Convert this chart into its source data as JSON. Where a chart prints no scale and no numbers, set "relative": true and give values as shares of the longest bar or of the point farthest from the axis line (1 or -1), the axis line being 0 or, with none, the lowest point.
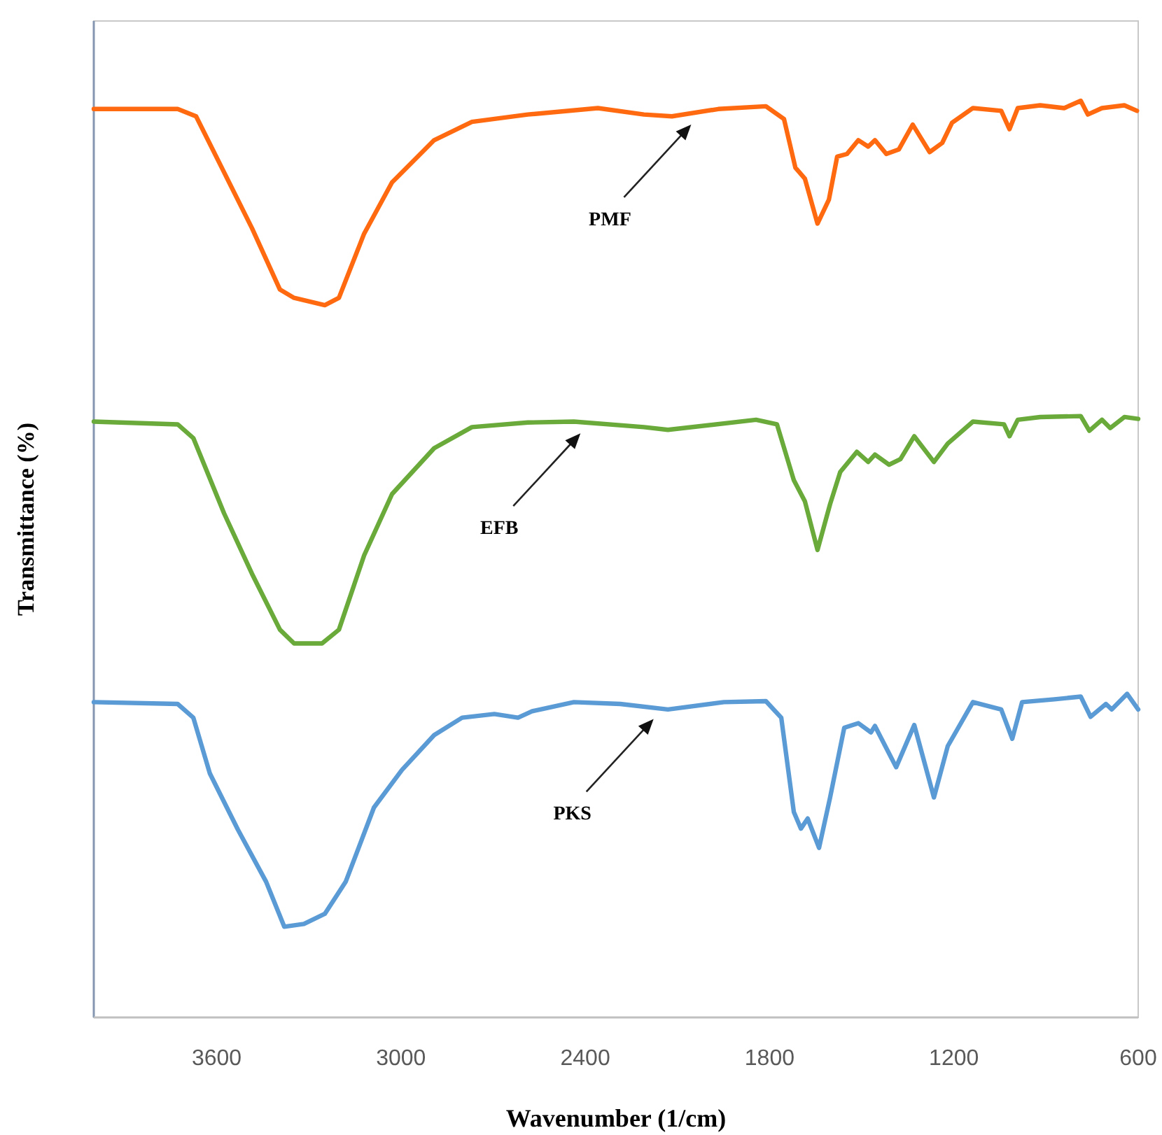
{
  "chart_data": {
    "type": "line",
    "relative": true,
    "xlabel": "Wavenumber (1/cm)",
    "ylabel": "Transmittance (%)",
    "xlim": [
      4000,
      600
    ],
    "xticks": [
      3600,
      3000,
      2400,
      1800,
      1200,
      600
    ],
    "tick_labels": "x",
    "grid": false,
    "marker": "none",
    "line_style": "solid",
    "series": [
      {
        "color": "#ff6a10",
        "x": [
          4000,
          3727,
          3667,
          3576,
          3485,
          3394,
          3348,
          3248,
          3202,
          3120,
          3029,
          2892,
          2769,
          2587,
          2359,
          2209,
          2118,
          1967,
          1812,
          1753,
          1716,
          1685,
          1644,
          1607,
          1580,
          1548,
          1511,
          1479,
          1457,
          1420,
          1379,
          1334,
          1279,
          1238,
          1206,
          1138,
          1046,
          1019,
          992,
          919,
          841,
          787,
          764,
          718,
          645,
          604
        ],
        "values": [
          0.991,
          0.991,
          0.983,
          0.922,
          0.861,
          0.794,
          0.785,
          0.777,
          0.785,
          0.855,
          0.911,
          0.957,
          0.977,
          0.985,
          0.992,
          0.985,
          0.983,
          0.991,
          0.994,
          0.98,
          0.927,
          0.915,
          0.866,
          0.892,
          0.939,
          0.942,
          0.957,
          0.95,
          0.957,
          0.942,
          0.947,
          0.974,
          0.944,
          0.954,
          0.976,
          0.992,
          0.989,
          0.969,
          0.992,
          0.995,
          0.992,
          1,
          0.985,
          0.992,
          0.995,
          0.989
        ]
      },
      {
        "color": "#6aaa3a",
        "x": [
          4000,
          3727,
          3676,
          3576,
          3485,
          3394,
          3348,
          3257,
          3202,
          3120,
          3029,
          2892,
          2769,
          2587,
          2437,
          2209,
          2131,
          1844,
          1776,
          1721,
          1685,
          1644,
          1603,
          1570,
          1516,
          1479,
          1457,
          1411,
          1374,
          1329,
          1265,
          1220,
          1138,
          1037,
          1019,
          992,
          919,
          787,
          759,
          718,
          691,
          645,
          600
        ],
        "values": [
          0.65,
          0.647,
          0.632,
          0.55,
          0.484,
          0.423,
          0.408,
          0.408,
          0.423,
          0.504,
          0.571,
          0.621,
          0.644,
          0.649,
          0.65,
          0.644,
          0.641,
          0.652,
          0.647,
          0.586,
          0.563,
          0.51,
          0.56,
          0.595,
          0.617,
          0.606,
          0.614,
          0.603,
          0.609,
          0.634,
          0.606,
          0.626,
          0.65,
          0.647,
          0.634,
          0.652,
          0.655,
          0.656,
          0.64,
          0.652,
          0.643,
          0.655,
          0.653
        ]
      },
      {
        "color": "#5b9bd5",
        "x": [
          4000,
          3727,
          3676,
          3622,
          3531,
          3439,
          3380,
          3316,
          3248,
          3180,
          3088,
          2997,
          2892,
          2801,
          2696,
          2619,
          2573,
          2437,
          2286,
          2131,
          1949,
          1812,
          1762,
          1721,
          1698,
          1676,
          1639,
          1603,
          1557,
          1511,
          1470,
          1457,
          1388,
          1329,
          1265,
          1220,
          1138,
          1046,
          1010,
          978,
          873,
          787,
          755,
          705,
          686,
          636,
          600
        ],
        "values": [
          0.344,
          0.342,
          0.327,
          0.266,
          0.205,
          0.148,
          0.099,
          0.102,
          0.113,
          0.148,
          0.229,
          0.27,
          0.308,
          0.327,
          0.331,
          0.327,
          0.334,
          0.344,
          0.342,
          0.336,
          0.344,
          0.345,
          0.327,
          0.224,
          0.206,
          0.217,
          0.185,
          0.24,
          0.316,
          0.321,
          0.311,
          0.318,
          0.273,
          0.319,
          0.24,
          0.296,
          0.344,
          0.336,
          0.304,
          0.344,
          0.347,
          0.35,
          0.328,
          0.342,
          0.336,
          0.353,
          0.336
        ]
      }
    ],
    "annotations": [
      "PMF",
      "EFB",
      "PKS"
    ]
  }
}
